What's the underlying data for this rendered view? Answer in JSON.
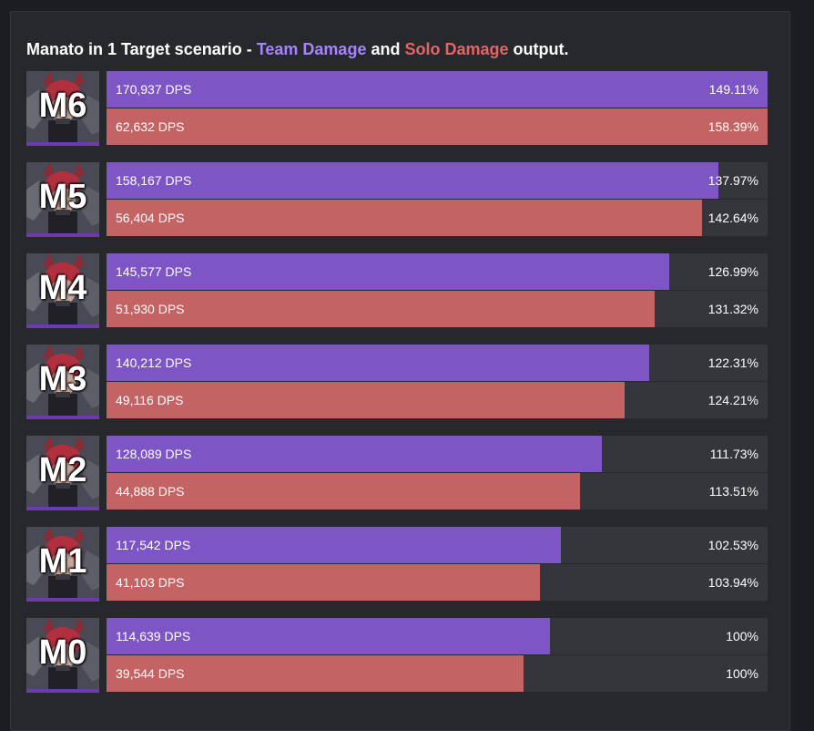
{
  "title": {
    "prefix": "Manato in 1 Target scenario - ",
    "team": "Team Damage",
    "mid": " and ",
    "solo": "Solo Damage",
    "suffix": " output."
  },
  "colors": {
    "team": "#7e55c4",
    "solo": "#c46363",
    "team_text": "#a684ff",
    "solo_text": "#e06666",
    "track": "#35363b"
  },
  "chart_data": {
    "type": "bar",
    "orientation": "horizontal",
    "title": "Manato in 1 Target scenario - Team Damage and Solo Damage output.",
    "categories": [
      "M6",
      "M5",
      "M4",
      "M3",
      "M2",
      "M1",
      "M0"
    ],
    "series": [
      {
        "name": "Team Damage",
        "values": [
          170937,
          158167,
          145577,
          140212,
          128089,
          117542,
          114639
        ],
        "value_labels": [
          "170,937 DPS",
          "158,167 DPS",
          "145,577 DPS",
          "140,212 DPS",
          "128,089 DPS",
          "117,542 DPS",
          "114,639 DPS"
        ],
        "percent_labels": [
          "149.11%",
          "137.97%",
          "126.99%",
          "122.31%",
          "111.73%",
          "102.53%",
          "100%"
        ]
      },
      {
        "name": "Solo Damage",
        "values": [
          62632,
          56404,
          51930,
          49116,
          44888,
          41103,
          39544
        ],
        "value_labels": [
          "62,632 DPS",
          "56,404 DPS",
          "51,930 DPS",
          "49,116 DPS",
          "44,888 DPS",
          "41,103 DPS",
          "39,544 DPS"
        ],
        "percent_labels": [
          "158.39%",
          "142.64%",
          "131.32%",
          "124.21%",
          "113.51%",
          "103.94%",
          "100%"
        ]
      }
    ]
  }
}
